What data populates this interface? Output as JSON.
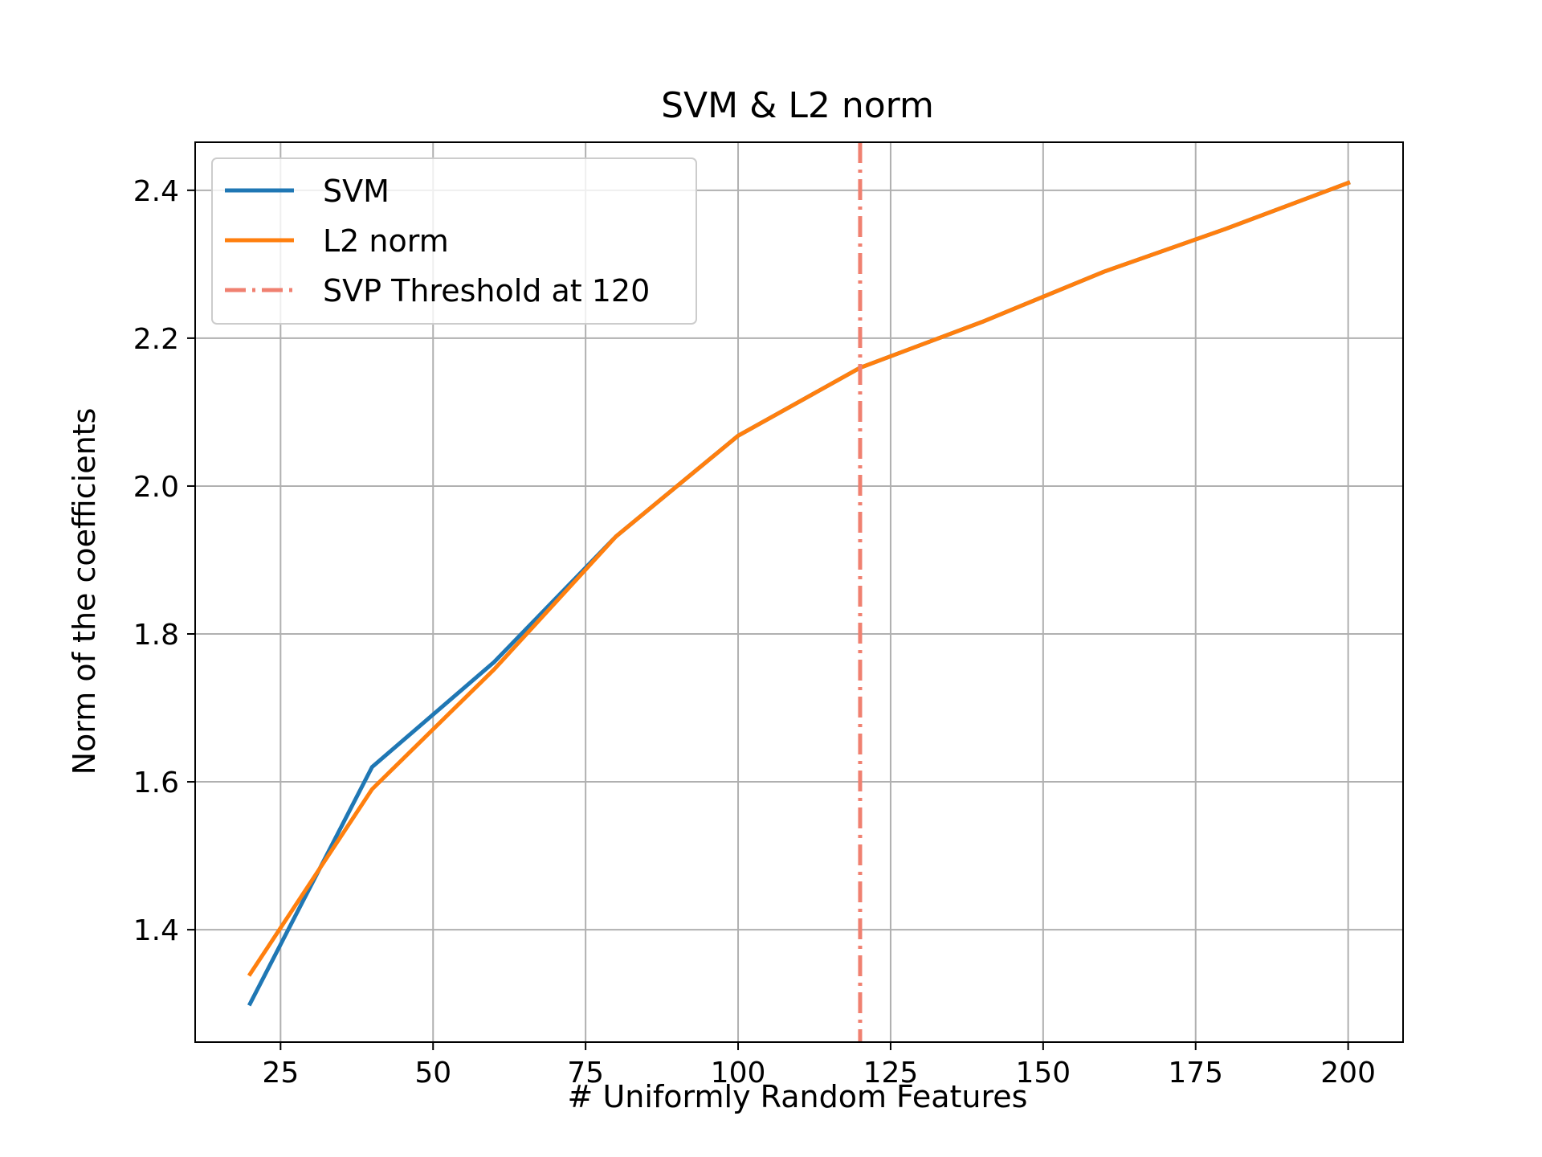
{
  "chart_data": {
    "type": "line",
    "title": "SVM & L2 norm",
    "xlabel": "# Uniformly Random Features",
    "ylabel": "Norm of the coefficients",
    "xlim": [
      11,
      209
    ],
    "ylim": [
      1.248,
      2.465
    ],
    "xticks": [
      25,
      50,
      75,
      100,
      125,
      150,
      175,
      200
    ],
    "yticks": [
      1.4,
      1.6,
      1.8,
      2.0,
      2.2,
      2.4
    ],
    "xtick_labels": [
      "25",
      "50",
      "75",
      "100",
      "125",
      "150",
      "175",
      "200"
    ],
    "ytick_labels": [
      "1.4",
      "1.6",
      "1.8",
      "2.0",
      "2.2",
      "2.4"
    ],
    "grid": true,
    "legend_position": "top-left",
    "series": [
      {
        "name": "SVM",
        "color": "#1f77b4",
        "style": "solid",
        "x": [
          20,
          40,
          60,
          80,
          100,
          120,
          140,
          160,
          180,
          200
        ],
        "y": [
          1.3,
          1.62,
          1.762,
          1.932,
          2.068,
          2.16,
          2.222,
          2.29,
          2.348,
          2.41
        ]
      },
      {
        "name": "L2 norm",
        "color": "#ff7f0e",
        "style": "solid",
        "x": [
          20,
          40,
          60,
          80,
          100,
          120,
          140,
          160,
          180,
          200
        ],
        "y": [
          1.34,
          1.59,
          1.752,
          1.932,
          2.068,
          2.16,
          2.222,
          2.29,
          2.348,
          2.41
        ]
      }
    ],
    "vlines": [
      {
        "name": "SVP Threshold at 120",
        "x": 120,
        "color": "#f08070",
        "style": "dashdot"
      }
    ]
  }
}
